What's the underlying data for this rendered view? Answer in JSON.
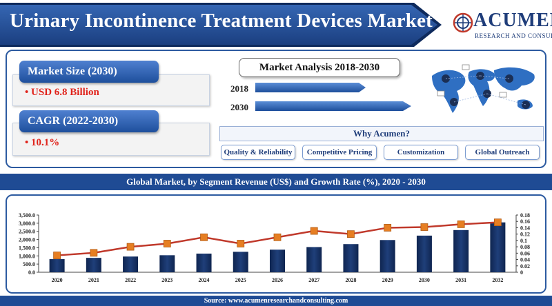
{
  "header": {
    "title": "Urinary Incontinence Treatment Devices Market",
    "logo_name": "ACUMEN",
    "logo_sub": "RESEARCH AND CONSULTING"
  },
  "kpis": [
    {
      "label": "Market Size (2030)",
      "value": "USD 6.8 Billion"
    },
    {
      "label": "CAGR (2022-2030)",
      "value": "10.1%"
    }
  ],
  "market_analysis": {
    "title": "Market Analysis 2018-2030",
    "years": [
      "2018",
      "2030"
    ]
  },
  "why": {
    "title": "Why Acumen?",
    "items": [
      "Quality & Reliability",
      "Competitive Pricing",
      "Customization",
      "Global Outreach"
    ]
  },
  "section_title": "Global Market, by Segment Revenue (US$) and Growth Rate (%), 2020 - 2030",
  "footer": "Source: www.acumenresearchandconsulting.com",
  "colors": {
    "bar": "#1f3f7a",
    "line": "#c0392b",
    "marker": "#e67e22",
    "accent": "#1f4b94"
  },
  "chart_data": {
    "type": "bar",
    "categories": [
      "2020",
      "2021",
      "2022",
      "2023",
      "2024",
      "2025",
      "2026",
      "2027",
      "2028",
      "2029",
      "2030",
      "2031",
      "2032"
    ],
    "series": [
      {
        "values": [
          800,
          880,
          960,
          1040,
          1140,
          1250,
          1380,
          1540,
          1720,
          1970,
          2240,
          2580,
          3050
        ],
        "axis": "left",
        "type": "bar"
      },
      {
        "values": [
          0.053,
          0.061,
          0.08,
          0.09,
          0.11,
          0.09,
          0.11,
          0.13,
          0.12,
          0.14,
          0.142,
          0.151,
          0.157
        ],
        "axis": "right",
        "type": "line"
      }
    ],
    "ylim": [
      0,
      3500
    ],
    "y2lim": [
      0,
      0.18
    ],
    "yticks": [
      "0.0",
      "500.0",
      "1,000.0",
      "1,500.0",
      "2,000.0",
      "2,500.0",
      "3,000.0",
      "3,500.0"
    ],
    "y2ticks": [
      "0",
      "0.02",
      "0.04",
      "0.06",
      "0.08",
      "0.1",
      "0.12",
      "0.14",
      "0.16",
      "0.18"
    ],
    "xlabel": "",
    "ylabel": "",
    "grid": false,
    "legend": "none"
  }
}
